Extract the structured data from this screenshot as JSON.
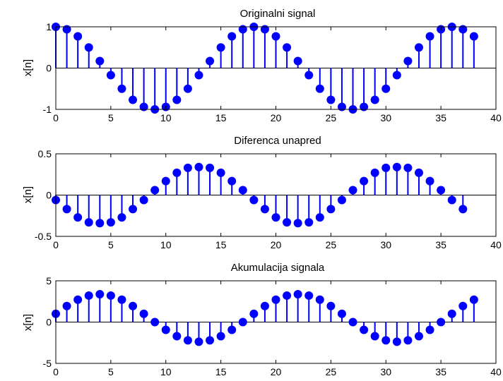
{
  "colors": {
    "stem": "#0000ff",
    "axis": "#000000",
    "background": "#ffffff"
  },
  "chart_data": [
    {
      "type": "stem",
      "title": "Originalni signal",
      "xlabel": "",
      "ylabel": "x[n]",
      "xlim": [
        0,
        40
      ],
      "ylim": [
        -1,
        1
      ],
      "xticks": [
        0,
        5,
        10,
        15,
        20,
        25,
        30,
        35,
        40
      ],
      "yticks": [
        -1,
        0,
        1
      ],
      "grid": false,
      "x": [
        0,
        1,
        2,
        3,
        4,
        5,
        6,
        7,
        8,
        9,
        10,
        11,
        12,
        13,
        14,
        15,
        16,
        17,
        18,
        19,
        20,
        21,
        22,
        23,
        24,
        25,
        26,
        27,
        28,
        29,
        30,
        31,
        32,
        33,
        34,
        35,
        36,
        37,
        38
      ],
      "y": [
        1,
        0.94,
        0.77,
        0.5,
        0.17,
        -0.17,
        -0.5,
        -0.77,
        -0.94,
        -1,
        -0.94,
        -0.77,
        -0.5,
        -0.17,
        0.17,
        0.5,
        0.77,
        0.94,
        1,
        0.94,
        0.77,
        0.5,
        0.17,
        -0.17,
        -0.5,
        -0.77,
        -0.94,
        -1,
        -0.94,
        -0.77,
        -0.5,
        -0.17,
        0.17,
        0.5,
        0.77,
        0.94,
        1,
        0.94,
        0.77
      ]
    },
    {
      "type": "stem",
      "title": "Diferenca unapred",
      "xlabel": "",
      "ylabel": "x[n]",
      "xlim": [
        0,
        40
      ],
      "ylim": [
        -0.5,
        0.5
      ],
      "xticks": [
        0,
        5,
        10,
        15,
        20,
        25,
        30,
        35,
        40
      ],
      "yticks": [
        -0.5,
        0,
        0.5
      ],
      "grid": false,
      "x": [
        0,
        1,
        2,
        3,
        4,
        5,
        6,
        7,
        8,
        9,
        10,
        11,
        12,
        13,
        14,
        15,
        16,
        17,
        18,
        19,
        20,
        21,
        22,
        23,
        24,
        25,
        26,
        27,
        28,
        29,
        30,
        31,
        32,
        33,
        34,
        35,
        36,
        37
      ],
      "y": [
        -0.06,
        -0.17,
        -0.27,
        -0.33,
        -0.34,
        -0.33,
        -0.27,
        -0.17,
        -0.06,
        0.06,
        0.17,
        0.27,
        0.33,
        0.34,
        0.33,
        0.27,
        0.17,
        0.06,
        -0.06,
        -0.17,
        -0.27,
        -0.33,
        -0.34,
        -0.33,
        -0.27,
        -0.17,
        -0.06,
        0.06,
        0.17,
        0.27,
        0.33,
        0.34,
        0.33,
        0.27,
        0.17,
        0.06,
        -0.06,
        -0.17
      ]
    },
    {
      "type": "stem",
      "title": "Akumulacija signala",
      "xlabel": "",
      "ylabel": "x[n]",
      "xlim": [
        0,
        40
      ],
      "ylim": [
        -5,
        5
      ],
      "xticks": [
        0,
        5,
        10,
        15,
        20,
        25,
        30,
        35,
        40
      ],
      "yticks": [
        -5,
        0,
        5
      ],
      "grid": false,
      "x": [
        0,
        1,
        2,
        3,
        4,
        5,
        6,
        7,
        8,
        9,
        10,
        11,
        12,
        13,
        14,
        15,
        16,
        17,
        18,
        19,
        20,
        21,
        22,
        23,
        24,
        25,
        26,
        27,
        28,
        29,
        30,
        31,
        32,
        33,
        34,
        35,
        36,
        37,
        38
      ],
      "y": [
        1,
        1.94,
        2.71,
        3.21,
        3.38,
        3.21,
        2.71,
        1.94,
        1,
        0,
        -0.94,
        -1.71,
        -2.21,
        -2.38,
        -2.21,
        -1.71,
        -0.94,
        0,
        1,
        1.94,
        2.71,
        3.21,
        3.38,
        3.21,
        2.71,
        1.94,
        1,
        0,
        -0.94,
        -1.71,
        -2.21,
        -2.38,
        -2.21,
        -1.71,
        -0.94,
        0,
        1,
        1.94,
        2.71
      ]
    }
  ]
}
